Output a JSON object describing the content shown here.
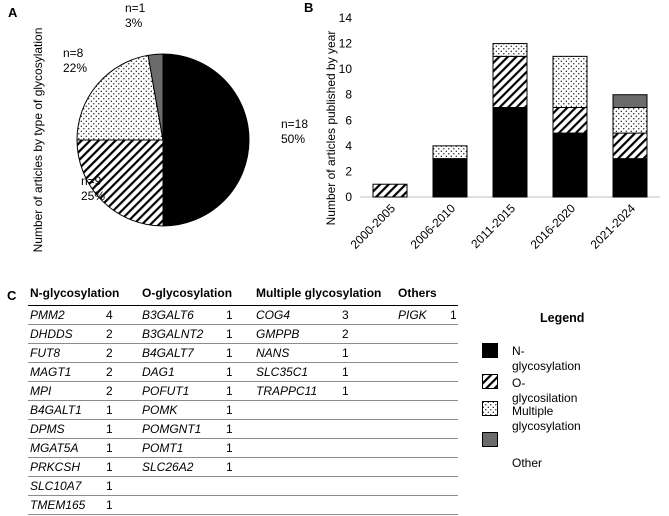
{
  "panel_labels": {
    "a": "A",
    "b": "B",
    "c": "C"
  },
  "colors": {
    "n": "#000000",
    "o": "hatch",
    "multiple": "dots",
    "other": "#6b6b6b"
  },
  "chart_data": [
    {
      "type": "pie",
      "panel": "A",
      "ylabel": "Number of articles by type of glycosylation",
      "slices": [
        {
          "name": "N-glycosylation",
          "value": 18,
          "count_label": "n=18",
          "pct_label": "50%"
        },
        {
          "name": "O-glycosylation",
          "value": 9,
          "count_label": "n=9",
          "pct_label": "25%"
        },
        {
          "name": "Multiple glycosylation",
          "value": 8,
          "count_label": "n=8",
          "pct_label": "22%"
        },
        {
          "name": "Other",
          "value": 1,
          "count_label": "n=1",
          "pct_label": "3%"
        }
      ]
    },
    {
      "type": "bar",
      "stacked": true,
      "panel": "B",
      "ylabel": "Number of articles published by year",
      "xlabel": "",
      "categories": [
        "2000-2005",
        "2006-2010",
        "2011-2015",
        "2016-2020",
        "2021-2024"
      ],
      "ylim": [
        0,
        14
      ],
      "yticks": [
        0,
        2,
        4,
        6,
        8,
        10,
        12,
        14
      ],
      "series": [
        {
          "name": "N-glycosylation",
          "values": [
            0,
            3,
            7,
            5,
            3
          ]
        },
        {
          "name": "O-glycosylation",
          "values": [
            1,
            0,
            4,
            2,
            2
          ]
        },
        {
          "name": "Multiple glycosylation",
          "values": [
            0,
            1,
            1,
            4,
            2
          ]
        },
        {
          "name": "Other",
          "values": [
            0,
            0,
            0,
            0,
            1
          ]
        }
      ]
    }
  ],
  "table": {
    "headers": [
      "N-glycosylation",
      "O-glycosylation",
      "Multiple glycosylation",
      "Others"
    ],
    "rows": [
      [
        [
          "PMM2",
          "4"
        ],
        [
          "B3GALT6",
          "1"
        ],
        [
          "COG4",
          "3"
        ],
        [
          "PIGK",
          "1"
        ]
      ],
      [
        [
          "DHDDS",
          "2"
        ],
        [
          "B3GALNT2",
          "1"
        ],
        [
          "GMPPB",
          "2"
        ],
        [
          "",
          ""
        ]
      ],
      [
        [
          "FUT8",
          "2"
        ],
        [
          "B4GALT7",
          "1"
        ],
        [
          "NANS",
          "1"
        ],
        [
          "",
          ""
        ]
      ],
      [
        [
          "MAGT1",
          "2"
        ],
        [
          "DAG1",
          "1"
        ],
        [
          "SLC35C1",
          "1"
        ],
        [
          "",
          ""
        ]
      ],
      [
        [
          "MPI",
          "2"
        ],
        [
          "POFUT1",
          "1"
        ],
        [
          "TRAPPC11",
          "1"
        ],
        [
          "",
          ""
        ]
      ],
      [
        [
          "B4GALT1",
          "1"
        ],
        [
          "POMK",
          "1"
        ],
        [
          "",
          ""
        ],
        [
          "",
          ""
        ]
      ],
      [
        [
          "DPMS",
          "1"
        ],
        [
          "POMGNT1",
          "1"
        ],
        [
          "",
          ""
        ],
        [
          "",
          ""
        ]
      ],
      [
        [
          "MGAT5A",
          "1"
        ],
        [
          "POMT1",
          "1"
        ],
        [
          "",
          ""
        ],
        [
          "",
          ""
        ]
      ],
      [
        [
          "PRKCSH",
          "1"
        ],
        [
          "SLC26A2",
          "1"
        ],
        [
          "",
          ""
        ],
        [
          "",
          ""
        ]
      ],
      [
        [
          "SLC10A7",
          "1"
        ],
        [
          "",
          ""
        ],
        [
          "",
          ""
        ],
        [
          "",
          ""
        ]
      ],
      [
        [
          "TMEM165",
          "1"
        ],
        [
          "",
          ""
        ],
        [
          "",
          ""
        ],
        [
          "",
          ""
        ]
      ]
    ]
  },
  "legend": {
    "title": "Legend",
    "items": [
      {
        "key": "n",
        "label": "N-glycosylation"
      },
      {
        "key": "o",
        "label": "O-glycosilation"
      },
      {
        "key": "multiple",
        "label": "Multiple glycosylation"
      },
      {
        "key": "other",
        "label": "Other"
      }
    ]
  }
}
